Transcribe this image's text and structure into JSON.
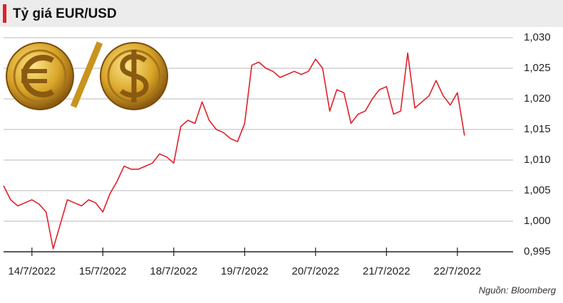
{
  "chart_data": {
    "type": "line",
    "title": "Tỷ giá EUR/USD",
    "source": "Nguồn: Bloomberg",
    "categories": [
      null,
      null,
      null,
      null,
      "14/7/2022",
      null,
      null,
      null,
      null,
      null,
      null,
      null,
      null,
      null,
      "15/7/2022",
      null,
      null,
      null,
      null,
      null,
      null,
      null,
      null,
      null,
      "18/7/2022",
      null,
      null,
      null,
      null,
      null,
      null,
      null,
      null,
      null,
      "19/7/2022",
      null,
      null,
      null,
      null,
      null,
      null,
      null,
      null,
      null,
      "20/7/2022",
      null,
      null,
      null,
      null,
      null,
      null,
      null,
      null,
      null,
      "21/7/2022",
      null,
      null,
      null,
      null,
      null,
      null,
      null,
      null,
      null,
      "22/7/2022",
      null
    ],
    "series": [
      {
        "name": "EUR/USD",
        "color": "#e0202a",
        "values": [
          1.0058,
          1.0035,
          1.0025,
          1.003,
          1.0035,
          1.0028,
          1.0015,
          0.9955,
          0.9995,
          1.0035,
          1.003,
          1.0025,
          1.0035,
          1.003,
          1.0015,
          1.0045,
          1.0065,
          1.009,
          1.0085,
          1.0085,
          1.009,
          1.0095,
          1.011,
          1.0105,
          1.0095,
          1.0155,
          1.0165,
          1.016,
          1.0195,
          1.0165,
          1.015,
          1.0145,
          1.0135,
          1.013,
          1.016,
          1.0255,
          1.026,
          1.025,
          1.0245,
          1.0235,
          1.024,
          1.0245,
          1.024,
          1.0245,
          1.0265,
          1.025,
          1.018,
          1.0215,
          1.021,
          1.016,
          1.0175,
          1.018,
          1.02,
          1.0215,
          1.022,
          1.0175,
          1.018,
          1.0275,
          1.0185,
          1.0195,
          1.0205,
          1.023,
          1.0205,
          1.019,
          1.021,
          1.014
        ]
      }
    ],
    "ylim": [
      0.995,
      1.03
    ],
    "yticks": [
      {
        "value": 0.995,
        "label": "0,995"
      },
      {
        "value": 1.0,
        "label": "1,000"
      },
      {
        "value": 1.005,
        "label": "1,005"
      },
      {
        "value": 1.01,
        "label": "1,010"
      },
      {
        "value": 1.015,
        "label": "1,015"
      },
      {
        "value": 1.02,
        "label": "1,020"
      },
      {
        "value": 1.025,
        "label": "1,025"
      },
      {
        "value": 1.03,
        "label": "1,030"
      }
    ],
    "grid": true
  }
}
